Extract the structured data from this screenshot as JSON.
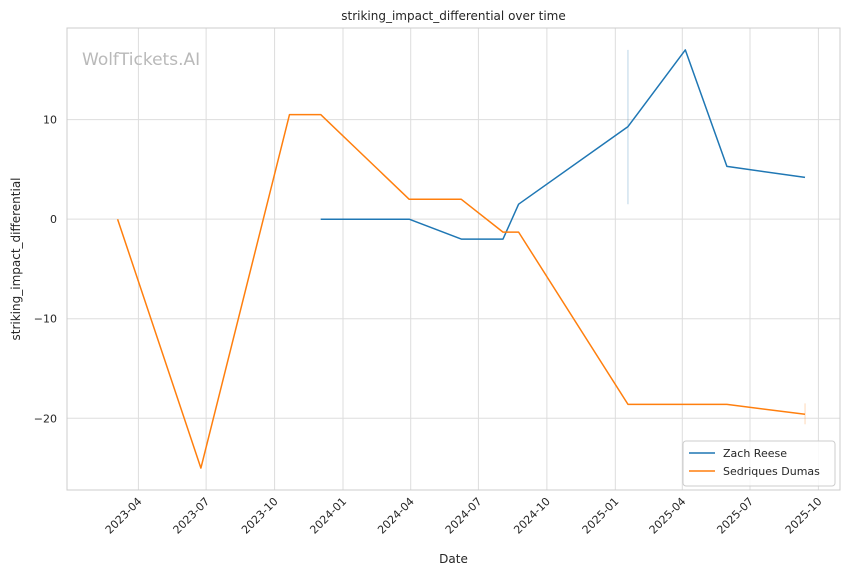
{
  "chart_data": {
    "type": "line",
    "title": "striking_impact_differential over time",
    "xlabel": "Date",
    "ylabel": "striking_impact_differential",
    "watermark": "WolfTickets.AI",
    "x_axis": {
      "type": "date",
      "range": [
        "2022-12-26",
        "2025-10-30"
      ],
      "ticks": [
        "2023-04-01",
        "2023-07-01",
        "2023-10-01",
        "2024-01-01",
        "2024-04-01",
        "2024-07-01",
        "2024-10-01",
        "2025-01-01",
        "2025-04-01",
        "2025-07-01",
        "2025-10-01"
      ],
      "tick_labels": [
        "2023-04",
        "2023-07",
        "2023-10",
        "2024-01",
        "2024-04",
        "2024-07",
        "2024-10",
        "2025-01",
        "2025-04",
        "2025-07",
        "2025-10"
      ]
    },
    "y_axis": {
      "range": [
        -27.2,
        19.2
      ],
      "ticks": [
        -20,
        -10,
        0,
        10
      ],
      "tick_labels": [
        "−20",
        "−10",
        "0",
        "10"
      ]
    },
    "grid": true,
    "legend_position": "bottom-right",
    "series": [
      {
        "name": "Zach Reese",
        "color": "#1f77b4",
        "points": [
          {
            "x": "2023-12-02",
            "y": 0
          },
          {
            "x": "2024-03-30",
            "y": 0
          },
          {
            "x": "2024-06-08",
            "y": -2
          },
          {
            "x": "2024-08-03",
            "y": -2
          },
          {
            "x": "2024-08-24",
            "y": 1.5
          },
          {
            "x": "2025-01-18",
            "y": 9.3
          },
          {
            "x": "2025-04-05",
            "y": 17
          },
          {
            "x": "2025-05-31",
            "y": 5.3
          },
          {
            "x": "2025-09-13",
            "y": 4.2
          }
        ]
      },
      {
        "name": "Sedriques Dumas",
        "color": "#ff7f0e",
        "points": [
          {
            "x": "2023-03-04",
            "y": 0
          },
          {
            "x": "2023-06-24",
            "y": -25
          },
          {
            "x": "2023-10-21",
            "y": 10.5
          },
          {
            "x": "2023-12-02",
            "y": 10.5
          },
          {
            "x": "2024-03-30",
            "y": 2
          },
          {
            "x": "2024-06-08",
            "y": 2
          },
          {
            "x": "2024-08-03",
            "y": -1.3
          },
          {
            "x": "2024-08-24",
            "y": -1.3
          },
          {
            "x": "2025-01-18",
            "y": -18.6
          },
          {
            "x": "2025-05-31",
            "y": -18.6
          },
          {
            "x": "2025-09-13",
            "y": -19.6
          }
        ]
      }
    ]
  }
}
